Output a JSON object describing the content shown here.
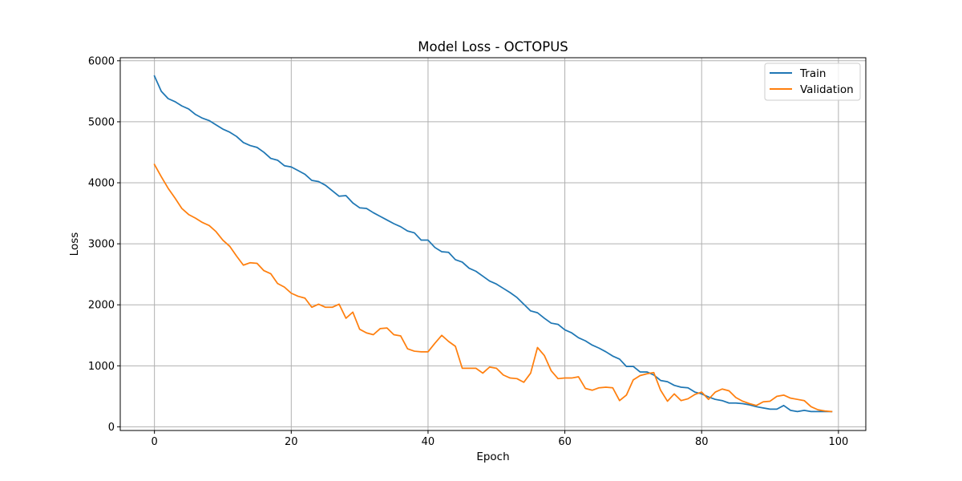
{
  "chart_data": {
    "type": "line",
    "title": "Model Loss - OCTOPUS",
    "xlabel": "Epoch",
    "ylabel": "Loss",
    "xlim": [
      -5,
      104
    ],
    "ylim": [
      -60,
      6050
    ],
    "xticks": [
      0,
      20,
      40,
      60,
      80,
      100
    ],
    "yticks": [
      0,
      1000,
      2000,
      3000,
      4000,
      5000,
      6000
    ],
    "grid": true,
    "legend_position": "top-right",
    "x": [
      0,
      1,
      2,
      3,
      4,
      5,
      6,
      7,
      8,
      9,
      10,
      11,
      12,
      13,
      14,
      15,
      16,
      17,
      18,
      19,
      20,
      21,
      22,
      23,
      24,
      25,
      26,
      27,
      28,
      29,
      30,
      31,
      32,
      33,
      34,
      35,
      36,
      37,
      38,
      39,
      40,
      41,
      42,
      43,
      44,
      45,
      46,
      47,
      48,
      49,
      50,
      51,
      52,
      53,
      54,
      55,
      56,
      57,
      58,
      59,
      60,
      61,
      62,
      63,
      64,
      65,
      66,
      67,
      68,
      69,
      70,
      71,
      72,
      73,
      74,
      75,
      76,
      77,
      78,
      79,
      80,
      81,
      82,
      83,
      84,
      85,
      86,
      87,
      88,
      89,
      90,
      91,
      92,
      93,
      94,
      95,
      96,
      97,
      98,
      99
    ],
    "series": [
      {
        "name": "Train",
        "color": "#1f77b4",
        "values": [
          5750,
          5500,
          5380,
          5330,
          5260,
          5210,
          5120,
          5060,
          5020,
          4950,
          4880,
          4830,
          4760,
          4660,
          4610,
          4580,
          4500,
          4400,
          4370,
          4280,
          4260,
          4200,
          4140,
          4040,
          4020,
          3960,
          3870,
          3780,
          3790,
          3670,
          3590,
          3580,
          3510,
          3450,
          3390,
          3330,
          3280,
          3210,
          3180,
          3060,
          3060,
          2940,
          2870,
          2860,
          2740,
          2700,
          2600,
          2550,
          2470,
          2390,
          2340,
          2270,
          2200,
          2120,
          2010,
          1900,
          1870,
          1780,
          1700,
          1680,
          1590,
          1540,
          1460,
          1410,
          1340,
          1290,
          1230,
          1160,
          1110,
          990,
          990,
          900,
          900,
          850,
          760,
          740,
          680,
          650,
          640,
          570,
          540,
          490,
          450,
          430,
          390,
          390,
          380,
          360,
          330,
          310,
          290,
          290,
          350,
          270,
          250,
          270,
          250,
          250,
          250,
          250
        ]
      },
      {
        "name": "Validation",
        "color": "#ff7f0e",
        "values": [
          4300,
          4100,
          3910,
          3750,
          3580,
          3480,
          3420,
          3350,
          3300,
          3200,
          3060,
          2960,
          2800,
          2650,
          2690,
          2680,
          2560,
          2510,
          2350,
          2290,
          2190,
          2140,
          2110,
          1960,
          2010,
          1960,
          1960,
          2010,
          1780,
          1880,
          1600,
          1540,
          1510,
          1610,
          1620,
          1510,
          1490,
          1280,
          1240,
          1230,
          1230,
          1370,
          1500,
          1400,
          1320,
          960,
          960,
          960,
          880,
          980,
          960,
          850,
          800,
          790,
          730,
          880,
          1300,
          1170,
          920,
          790,
          800,
          800,
          820,
          630,
          600,
          640,
          650,
          640,
          430,
          520,
          770,
          840,
          870,
          890,
          600,
          420,
          540,
          430,
          460,
          530,
          570,
          450,
          570,
          620,
          590,
          480,
          420,
          380,
          350,
          410,
          420,
          500,
          520,
          470,
          450,
          430,
          330,
          280,
          260,
          250
        ]
      }
    ]
  }
}
